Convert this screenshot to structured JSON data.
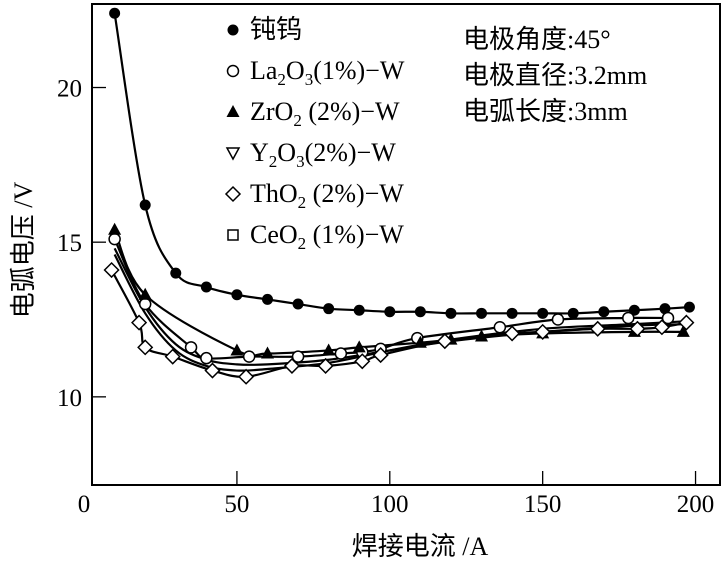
{
  "chart_data": {
    "type": "line",
    "title": "",
    "xlabel": "焊接电流 /A",
    "ylabel": "电弧电压 /V",
    "xlim": [
      2.6,
      208
    ],
    "ylim": [
      7.15,
      22.7
    ],
    "xticks": [
      0,
      50,
      100,
      150,
      200
    ],
    "yticks": [
      10,
      15,
      20
    ],
    "grid": false,
    "legend_placement": "top-left",
    "annotations": [
      "电极角度:45°",
      "电极直径:3.2mm",
      "电弧长度:3mm"
    ],
    "series": [
      {
        "name": "钝钨",
        "legend": [
          "钝钨",
          "",
          ""
        ],
        "marker": "filled-circle",
        "x": [
          10,
          20,
          30,
          40,
          50,
          60,
          70,
          80,
          90,
          100,
          110,
          120,
          130,
          140,
          150,
          160,
          170,
          180,
          190,
          198
        ],
        "y": [
          22.4,
          16.2,
          14.0,
          13.55,
          13.3,
          13.15,
          13.0,
          12.85,
          12.8,
          12.75,
          12.75,
          12.7,
          12.7,
          12.7,
          12.7,
          12.7,
          12.75,
          12.8,
          12.85,
          12.9
        ]
      },
      {
        "name": "La2O3(1%)-W",
        "legend": [
          "La",
          "2",
          "O",
          "3",
          "(1%)−W"
        ],
        "marker": "open-circle",
        "x": [
          10,
          20,
          35,
          40,
          54,
          70,
          84,
          91,
          97,
          109,
          136,
          155,
          178,
          191
        ],
        "y": [
          15.1,
          13.0,
          11.6,
          11.25,
          11.3,
          11.3,
          11.4,
          11.45,
          11.55,
          11.9,
          12.25,
          12.5,
          12.55,
          12.55
        ]
      },
      {
        "name": "ZrO2(2%)-W",
        "legend": [
          "ZrO",
          "2",
          " (2%)−W"
        ],
        "marker": "filled-triangle",
        "x": [
          10,
          20,
          50,
          60,
          80,
          90,
          110,
          120,
          130,
          150,
          180,
          196
        ],
        "y": [
          15.4,
          13.3,
          11.5,
          11.4,
          11.5,
          11.6,
          11.75,
          11.85,
          11.95,
          12.05,
          12.1,
          12.1
        ]
      },
      {
        "name": "Y2O3(2%)-W",
        "legend": [
          "Y",
          "2",
          "O",
          "3",
          "(2%)−W"
        ],
        "marker": "none",
        "x": [
          10,
          20,
          30,
          40,
          50,
          60,
          80,
          100,
          120,
          150,
          180,
          198
        ],
        "y": [
          14.8,
          12.9,
          11.7,
          11.2,
          11.05,
          11.05,
          11.2,
          11.5,
          11.8,
          12.1,
          12.3,
          12.35
        ]
      },
      {
        "name": "ThO2(2%)-W",
        "legend": [
          "ThO",
          "2",
          " (2%)−W"
        ],
        "marker": "open-diamond",
        "x": [
          9,
          18,
          20,
          29,
          42,
          53,
          68,
          79,
          91,
          97,
          118,
          140,
          150,
          168,
          181,
          189,
          197
        ],
        "y": [
          14.1,
          12.4,
          11.6,
          11.3,
          10.85,
          10.65,
          11.0,
          11.0,
          11.15,
          11.35,
          11.8,
          12.05,
          12.1,
          12.2,
          12.2,
          12.25,
          12.4
        ]
      },
      {
        "name": "CeO2(1%)-W",
        "legend": [
          "CeO",
          "2",
          " (1%)−W"
        ],
        "marker": "none",
        "x": [
          10,
          20,
          30,
          40,
          50,
          60,
          80,
          100,
          120,
          150,
          180,
          198
        ],
        "y": [
          14.6,
          12.7,
          11.5,
          11.0,
          10.85,
          10.9,
          11.1,
          11.5,
          11.85,
          12.2,
          12.35,
          12.45
        ]
      }
    ]
  }
}
